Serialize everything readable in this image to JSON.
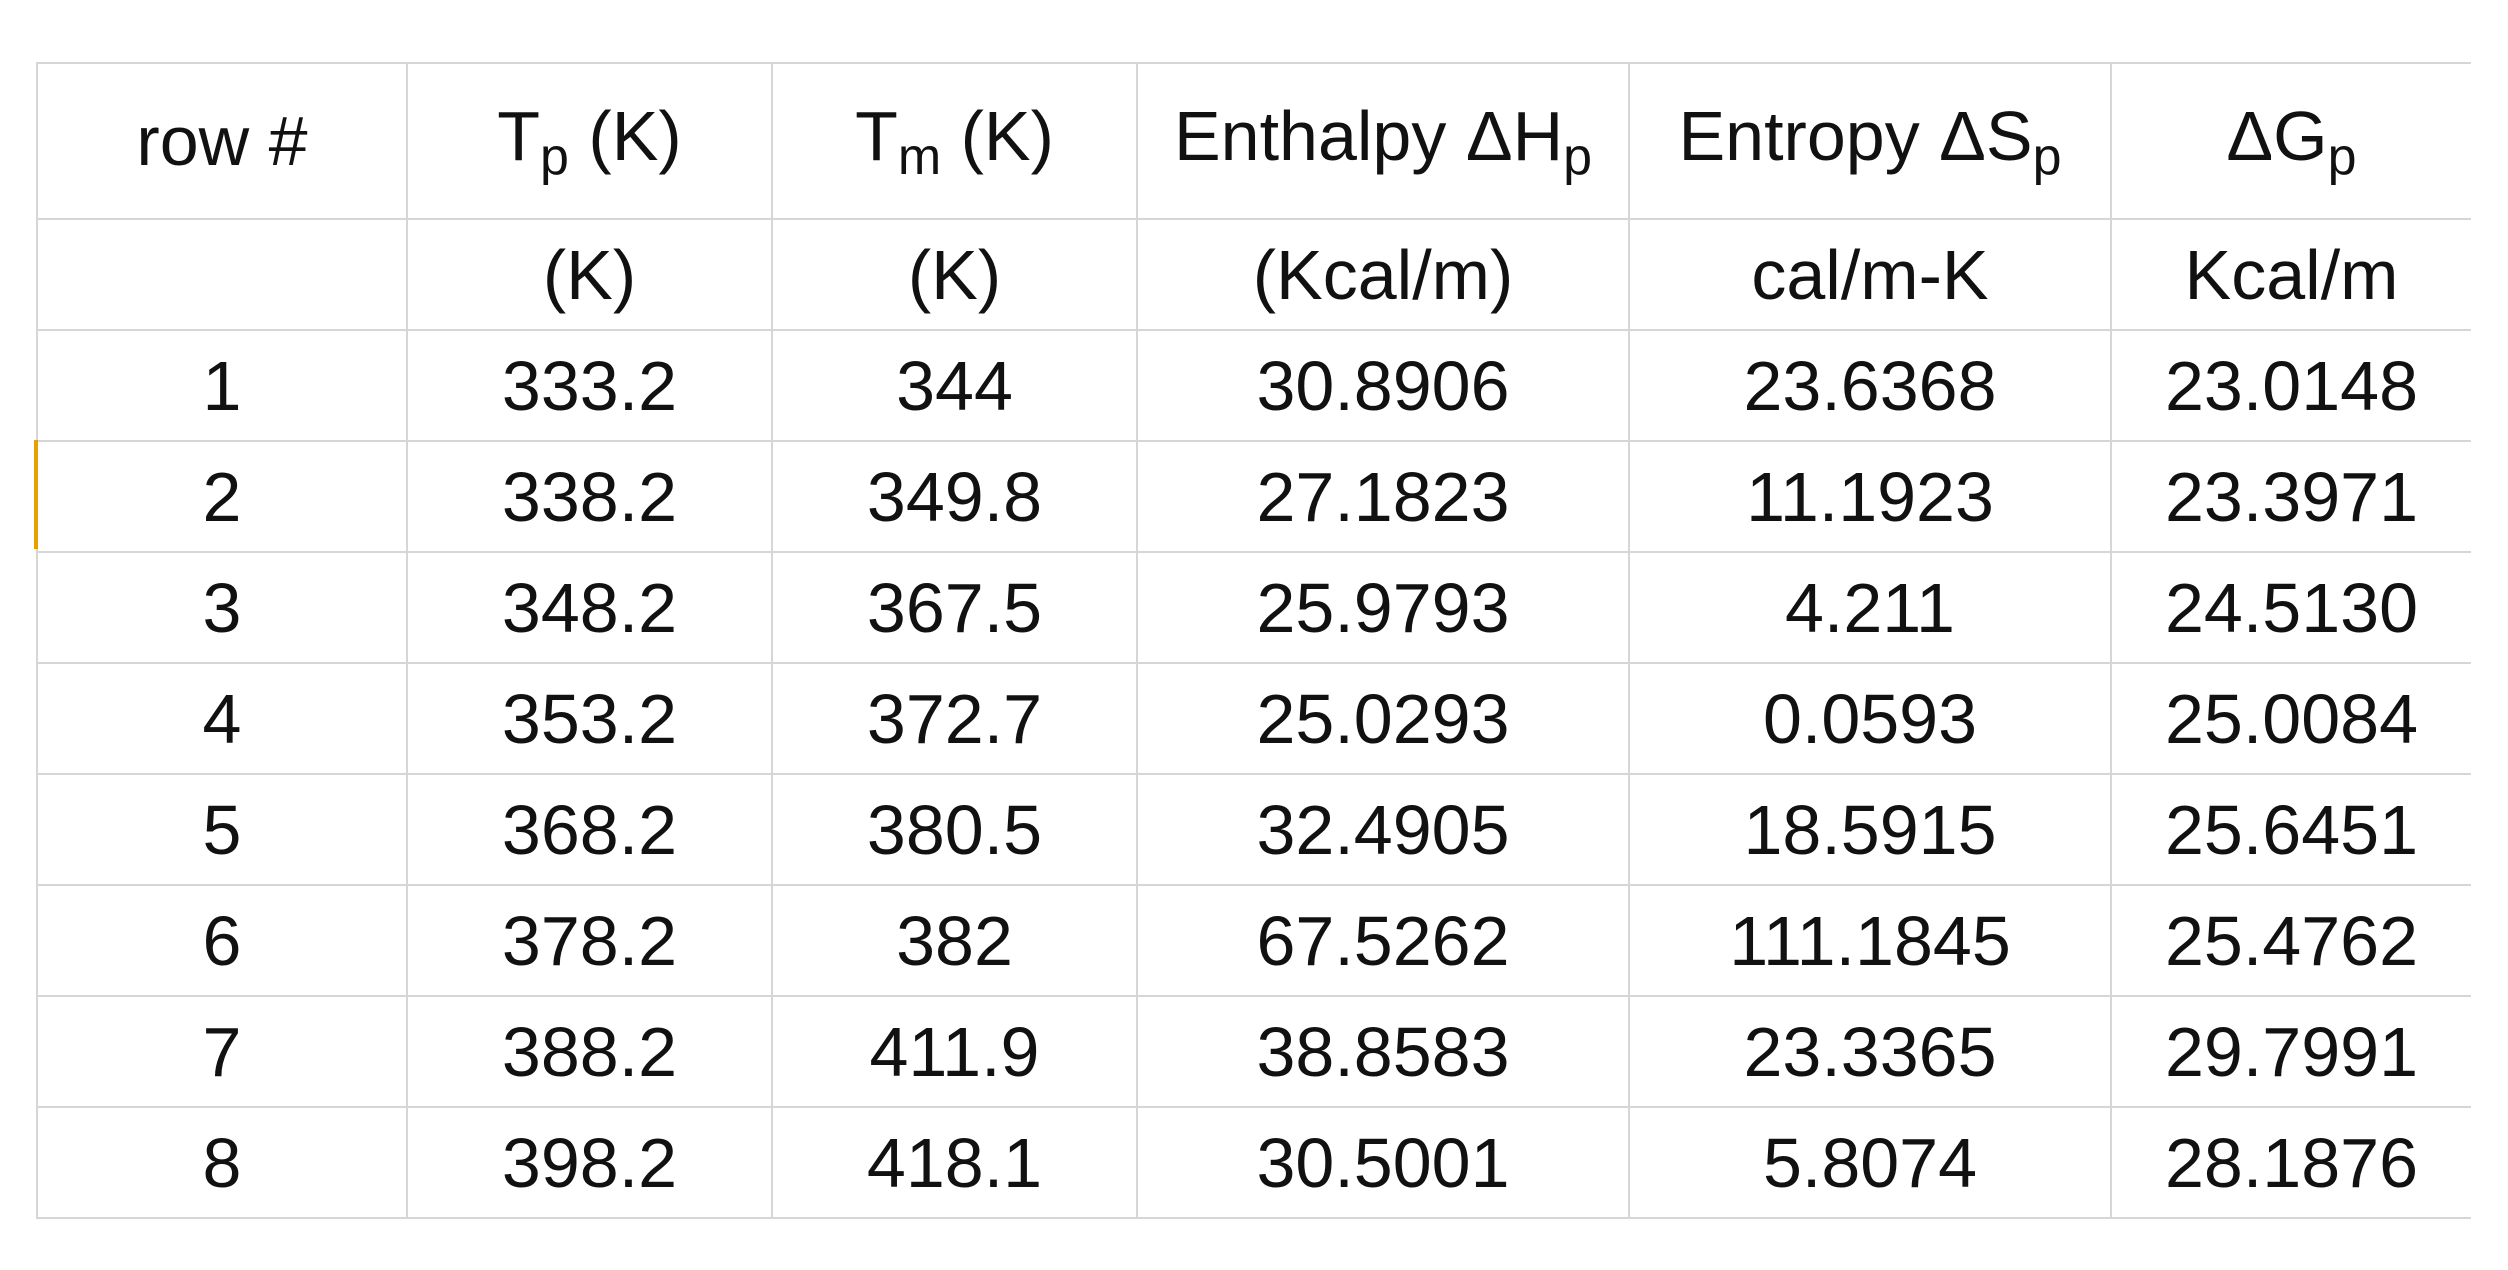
{
  "table": {
    "header": [
      {
        "text": "row #"
      },
      {
        "text": "T",
        "sub": "p",
        "after": " (K)"
      },
      {
        "text": "T",
        "sub": "m",
        "after": " (K)"
      },
      {
        "text": "Enthalpy ΔH",
        "sub": "p"
      },
      {
        "text": "Entropy ΔS",
        "sub": "p"
      },
      {
        "text": "ΔG",
        "sub": "p"
      }
    ],
    "units": [
      "(K)",
      "(K)",
      "(Kcal/m)",
      "cal/m-K",
      "Kcal/m"
    ],
    "rows": [
      [
        "1",
        "333.2",
        "344",
        "30.8906",
        "23.6368",
        "23.0148"
      ],
      [
        "2",
        "338.2",
        "349.8",
        "27.1823",
        "11.1923",
        "23.3971"
      ],
      [
        "3",
        "348.2",
        "367.5",
        "25.9793",
        "4.211",
        "24.5130"
      ],
      [
        "4",
        "353.2",
        "372.7",
        "25.0293",
        "0.0593",
        "25.0084"
      ],
      [
        "5",
        "368.2",
        "380.5",
        "32.4905",
        "18.5915",
        "25.6451"
      ],
      [
        "6",
        "378.2",
        "382",
        "67.5262",
        "111.1845",
        "25.4762"
      ],
      [
        "7",
        "388.2",
        "411.9",
        "38.8583",
        "23.3365",
        "29.7991"
      ],
      [
        "8",
        "398.2",
        "418.1",
        "30.5001",
        "5.8074",
        "28.1876"
      ]
    ]
  }
}
